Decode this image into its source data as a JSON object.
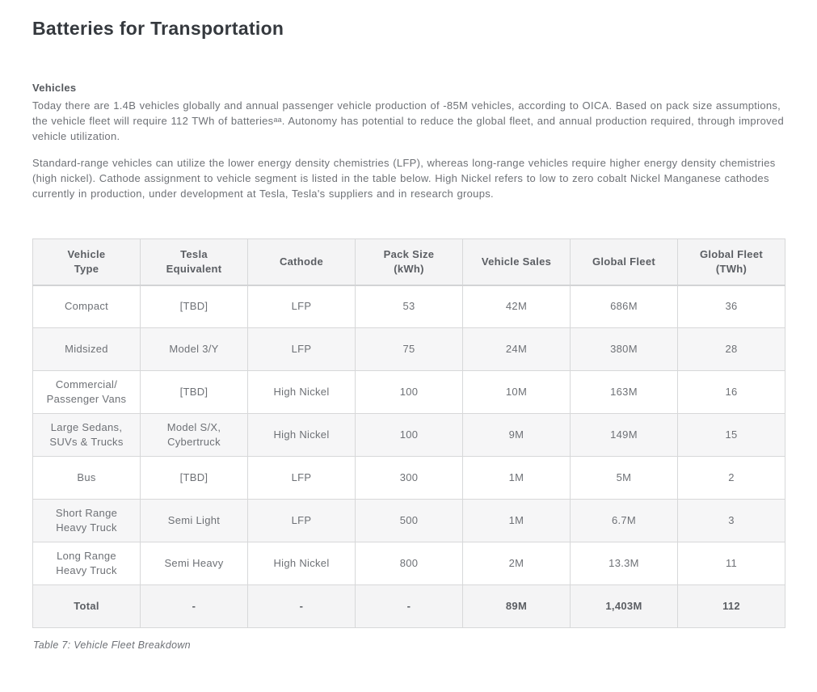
{
  "page": {
    "title": "Batteries for Transportation"
  },
  "section": {
    "heading": "Vehicles",
    "paragraph1": "Today there are 1.4B vehicles globally and annual passenger vehicle production of -85M vehicles, according to OICA. Based on pack size assumptions, the vehicle fleet will require 112 TWh of batteriesᵃᵃ. Autonomy has potential to reduce the global fleet, and annual production required, through improved vehicle utilization.",
    "paragraph2": "Standard-range vehicles can utilize the lower energy density chemistries (LFP), whereas long-range vehicles require higher energy density chemistries (high nickel).  Cathode assignment to vehicle segment is listed in the table below. High Nickel refers to low to zero cobalt Nickel Manganese cathodes currently in production, under development at Tesla, Tesla's suppliers and in research groups."
  },
  "table": {
    "headers": [
      "Vehicle\nType",
      "Tesla\nEquivalent",
      "Cathode",
      "Pack Size\n(kWh)",
      "Vehicle Sales",
      "Global Fleet",
      "Global Fleet\n(TWh)"
    ],
    "rows": [
      {
        "cells": [
          "Compact",
          "[TBD]",
          "LFP",
          "53",
          "42M",
          "686M",
          "36"
        ]
      },
      {
        "cells": [
          "Midsized",
          "Model 3/Y",
          "LFP",
          "75",
          "24M",
          "380M",
          "28"
        ]
      },
      {
        "cells": [
          "Commercial/\nPassenger Vans",
          "[TBD]",
          "High Nickel",
          "100",
          "10M",
          "163M",
          "16"
        ]
      },
      {
        "cells": [
          "Large Sedans,\nSUVs & Trucks",
          "Model S/X,\nCybertruck",
          "High Nickel",
          "100",
          "9M",
          "149M",
          "15"
        ]
      },
      {
        "cells": [
          "Bus",
          "[TBD]",
          "LFP",
          "300",
          "1M",
          "5M",
          "2"
        ]
      },
      {
        "cells": [
          "Short Range\nHeavy Truck",
          "Semi Light",
          "LFP",
          "500",
          "1M",
          "6.7M",
          "3"
        ]
      },
      {
        "cells": [
          "Long Range\nHeavy Truck",
          "Semi Heavy",
          "High Nickel",
          "800",
          "2M",
          "13.3M",
          "11"
        ]
      },
      {
        "cells": [
          "Total",
          "-",
          "-",
          "-",
          "89M",
          "1,403M",
          "112"
        ]
      }
    ],
    "caption": "Table 7: Vehicle Fleet Breakdown"
  },
  "colors": {
    "title_text": "#35393e",
    "body_text": "#6e7176",
    "table_header_bg": "#f4f4f5",
    "table_alt_row_bg": "#f6f6f7",
    "table_border": "#d7d8d9"
  }
}
